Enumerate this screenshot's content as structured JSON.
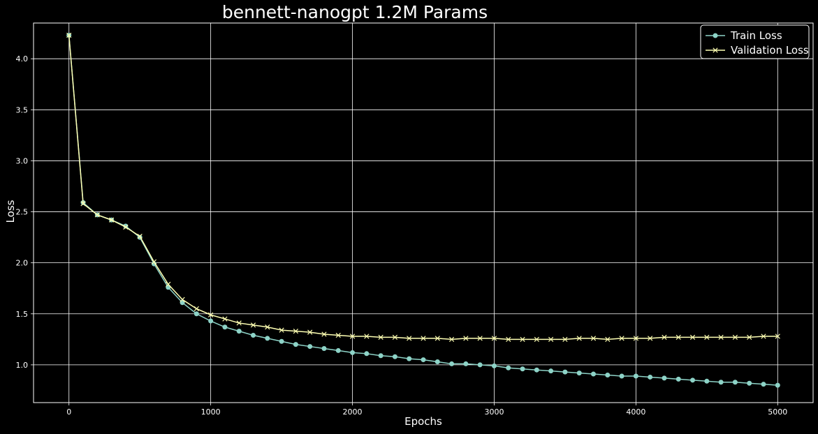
{
  "chart_data": {
    "type": "line",
    "title": "bennett-nanogpt 1.2M Params",
    "xlabel": "Epochs",
    "ylabel": "Loss",
    "xlim": [
      -250,
      5250
    ],
    "ylim": [
      0.63,
      4.35
    ],
    "grid": true,
    "legend_position": "top-right",
    "xticks": [
      0,
      1000,
      2000,
      3000,
      4000,
      5000
    ],
    "yticks": [
      1.0,
      1.5,
      2.0,
      2.5,
      3.0,
      3.5,
      4.0
    ],
    "ytick_labels": [
      "1.0",
      "1.5",
      "2.0",
      "2.5",
      "3.0",
      "3.5",
      "4.0"
    ],
    "x": [
      0,
      100,
      200,
      300,
      400,
      500,
      600,
      700,
      800,
      900,
      1000,
      1100,
      1200,
      1300,
      1400,
      1500,
      1600,
      1700,
      1800,
      1900,
      2000,
      2100,
      2200,
      2300,
      2400,
      2500,
      2600,
      2700,
      2800,
      2900,
      3000,
      3100,
      3200,
      3300,
      3400,
      3500,
      3600,
      3700,
      3800,
      3900,
      4000,
      4100,
      4200,
      4300,
      4400,
      4500,
      4600,
      4700,
      4800,
      4900,
      5000
    ],
    "series": [
      {
        "name": "Train Loss",
        "color": "#8dd3c7",
        "marker": "circle",
        "values": [
          4.23,
          2.59,
          2.47,
          2.42,
          2.36,
          2.25,
          1.99,
          1.76,
          1.61,
          1.5,
          1.43,
          1.37,
          1.33,
          1.29,
          1.26,
          1.23,
          1.2,
          1.18,
          1.16,
          1.14,
          1.12,
          1.11,
          1.09,
          1.08,
          1.06,
          1.05,
          1.03,
          1.01,
          1.01,
          1.0,
          0.99,
          0.97,
          0.96,
          0.95,
          0.94,
          0.93,
          0.92,
          0.91,
          0.9,
          0.89,
          0.89,
          0.88,
          0.87,
          0.86,
          0.85,
          0.84,
          0.83,
          0.83,
          0.82,
          0.81,
          0.8
        ]
      },
      {
        "name": "Validation Loss",
        "color": "#feffb3",
        "marker": "x",
        "values": [
          4.23,
          2.58,
          2.47,
          2.42,
          2.35,
          2.26,
          2.01,
          1.79,
          1.64,
          1.55,
          1.49,
          1.45,
          1.41,
          1.39,
          1.37,
          1.34,
          1.33,
          1.32,
          1.3,
          1.29,
          1.28,
          1.28,
          1.27,
          1.27,
          1.26,
          1.26,
          1.26,
          1.25,
          1.26,
          1.26,
          1.26,
          1.25,
          1.25,
          1.25,
          1.25,
          1.25,
          1.26,
          1.26,
          1.25,
          1.26,
          1.26,
          1.26,
          1.27,
          1.27,
          1.27,
          1.27,
          1.27,
          1.27,
          1.27,
          1.28,
          1.28
        ]
      }
    ]
  },
  "colors": {
    "background": "#000000",
    "grid": "#ffffff",
    "text": "#ffffff",
    "legend_border": "#ffffff"
  }
}
